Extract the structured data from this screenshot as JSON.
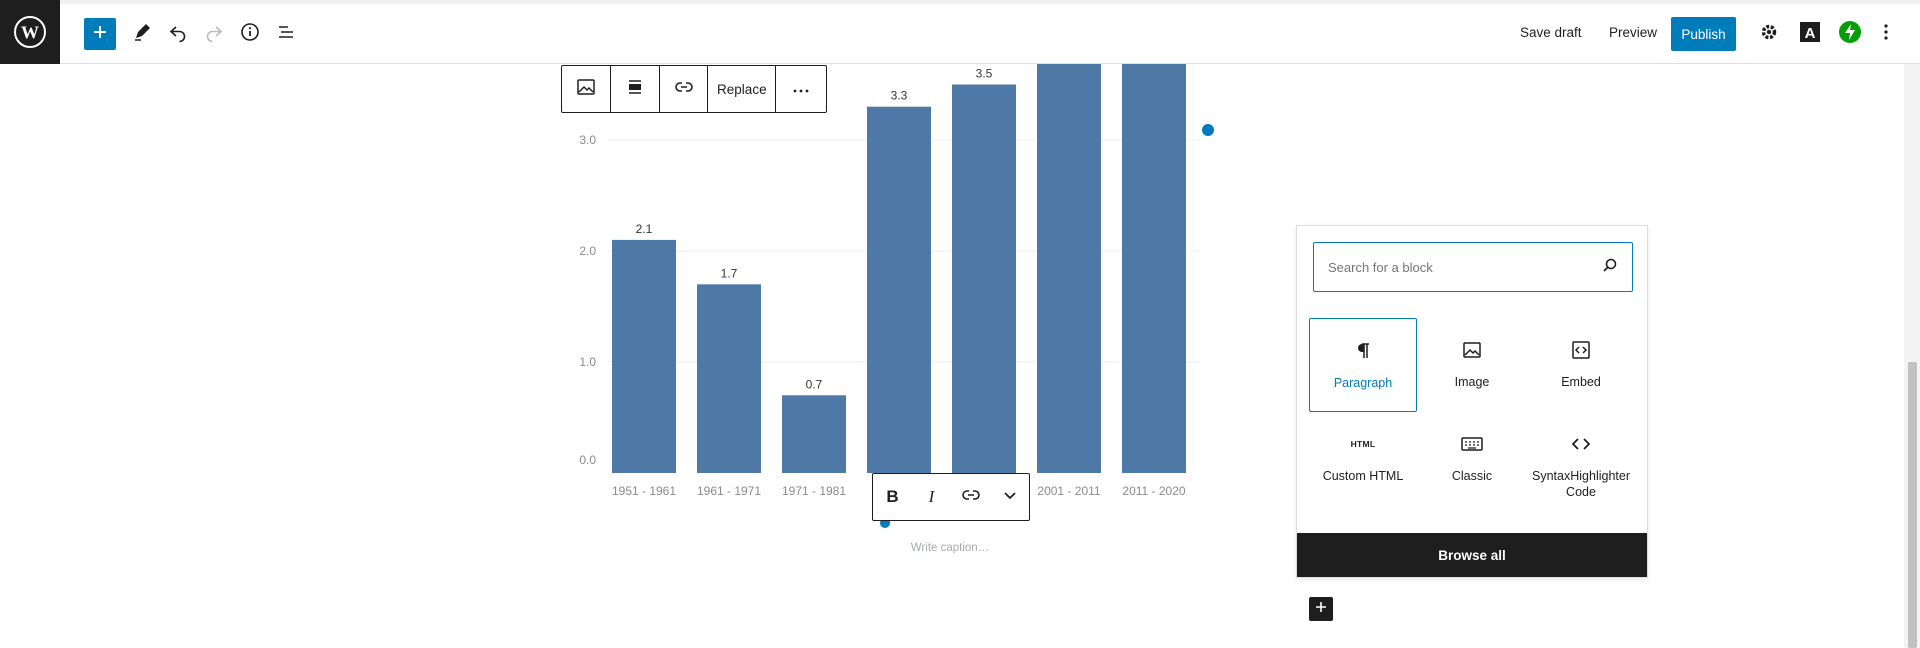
{
  "toolbar": {
    "save_draft_label": "Save draft",
    "preview_label": "Preview",
    "publish_label": "Publish",
    "icons": [
      "wordpress-logo",
      "plus-icon",
      "pencil-icon",
      "undo-icon",
      "redo-icon",
      "info-icon",
      "list-view-icon",
      "gear-icon",
      "typography-icon",
      "jetpack-icon",
      "kebab-icon"
    ]
  },
  "block_toolbar": {
    "replace_label": "Replace",
    "icons": [
      "image-icon",
      "align-icon",
      "link-icon",
      "more-icon"
    ]
  },
  "format_toolbar": {
    "bold_label": "B",
    "italic_label": "I",
    "icons": [
      "link-icon",
      "chevron-down-icon"
    ]
  },
  "caption": {
    "placeholder": "Write caption…"
  },
  "inserter": {
    "search_placeholder": "Search for a block",
    "blocks": [
      {
        "label": "Paragraph",
        "icon": "paragraph-icon",
        "selected": true
      },
      {
        "label": "Image",
        "icon": "image-icon",
        "selected": false
      },
      {
        "label": "Embed",
        "icon": "embed-icon",
        "selected": false
      },
      {
        "label": "Custom HTML",
        "icon": "html-icon",
        "icon_text": "HTML",
        "selected": false
      },
      {
        "label": "Classic",
        "icon": "keyboard-icon",
        "selected": false
      },
      {
        "label": "SyntaxHighlighter Code",
        "icon": "code-icon",
        "selected": false
      }
    ],
    "browse_all_label": "Browse all"
  },
  "colors": {
    "accent": "#007cba",
    "bar": "#4e79a7",
    "dark": "#1e1e1e",
    "jetpack": "#069e08"
  },
  "chart_data": {
    "type": "bar",
    "categories": [
      "1951 - 1961",
      "1961 - 1971",
      "1971 - 1981",
      "",
      "",
      "2001 - 2011",
      "2011 - 2020"
    ],
    "values": [
      2.1,
      1.7,
      0.7,
      3.3,
      3.5,
      null,
      null
    ],
    "data_labels": [
      "2.1",
      "1.7",
      "0.7",
      "3.3",
      "3.5",
      "",
      ""
    ],
    "y_ticks": [
      "0.0",
      "1.0",
      "2.0",
      "3.0"
    ],
    "grid": true
  }
}
